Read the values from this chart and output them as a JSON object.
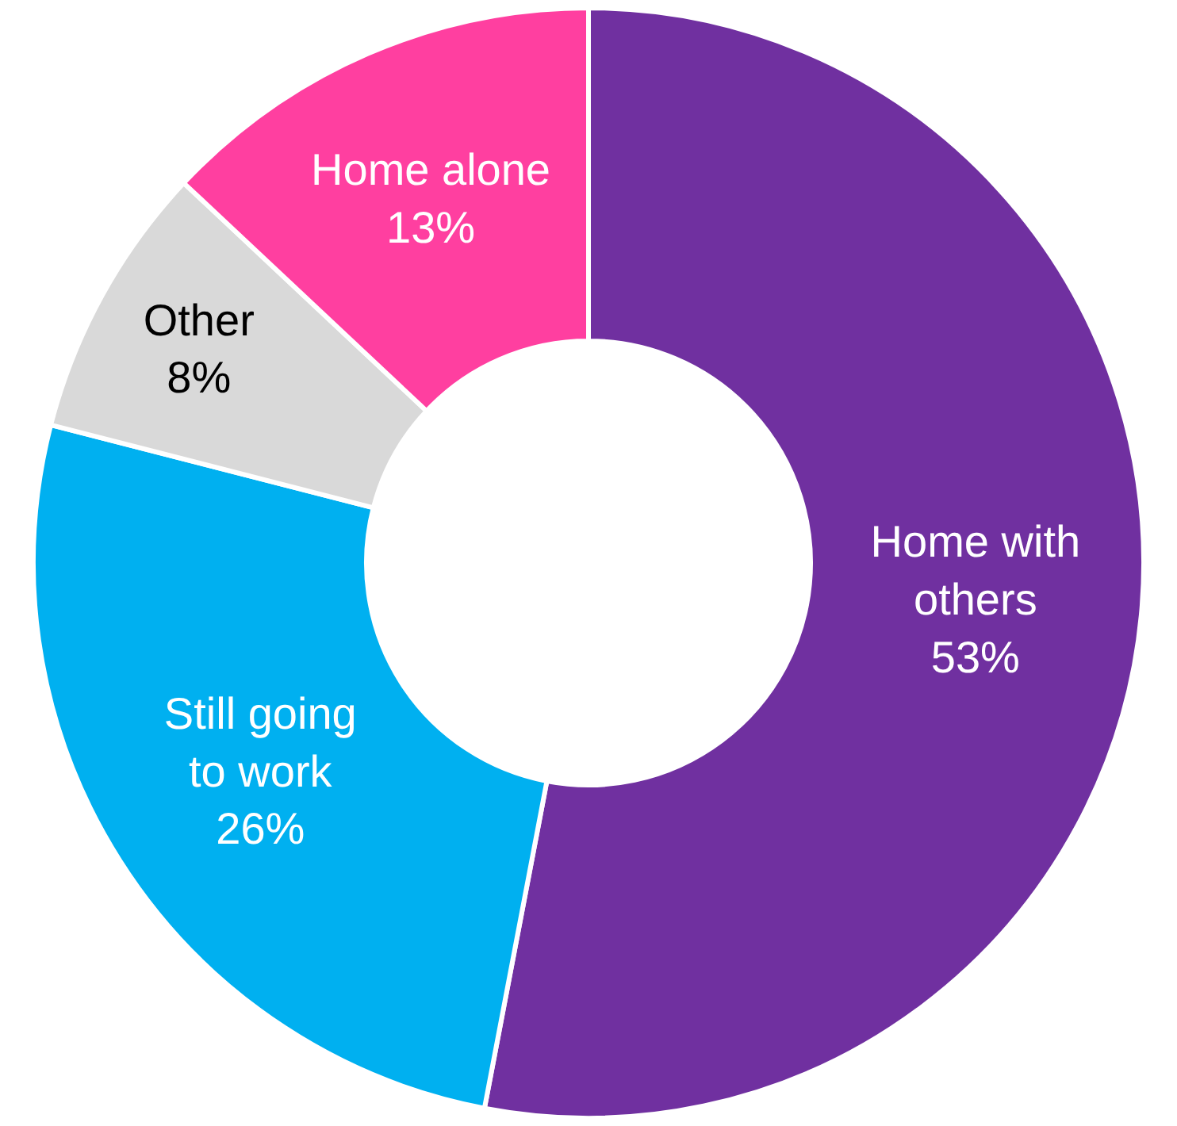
{
  "chart_data": {
    "type": "donut",
    "categories": [
      "Home with others",
      "Still going to work",
      "Other",
      "Home alone"
    ],
    "values": [
      53,
      26,
      8,
      13
    ],
    "value_labels": [
      "53%",
      "26%",
      "8%",
      "13%"
    ],
    "colors": [
      "#7030a0",
      "#00b0f0",
      "#d9d9d9",
      "#ff3fa0"
    ],
    "data_labels": true,
    "legend": false
  }
}
